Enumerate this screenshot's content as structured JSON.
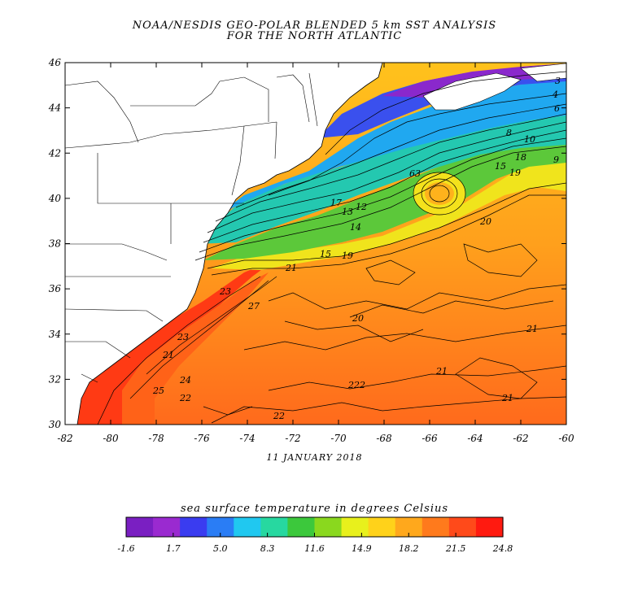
{
  "title_line1": "NOAA/NESDIS GEO-POLAR BLENDED 5 km SST ANALYSIS",
  "title_line2": "FOR THE NORTH ATLANTIC",
  "date": "11 JANUARY 2018",
  "colorbar": {
    "title": "sea surface temperature in degrees Celsius",
    "ticks": [
      "-1.6",
      "1.7",
      "5.0",
      "8.3",
      "11.6",
      "14.9",
      "18.2",
      "21.5",
      "24.8"
    ],
    "colors": [
      "#7a1fc2",
      "#9a2ad0",
      "#3a3cf0",
      "#2a7df5",
      "#20c8f0",
      "#27d8a0",
      "#3cc83c",
      "#8ad81e",
      "#e8f01c",
      "#ffd21a",
      "#ffa81c",
      "#ff7a1c",
      "#ff4a1a",
      "#ff1a10"
    ]
  },
  "axes": {
    "x_ticks": [
      "-82",
      "-80",
      "-78",
      "-76",
      "-74",
      "-72",
      "-70",
      "-68",
      "-66",
      "-64",
      "-62",
      "-60"
    ],
    "y_ticks": [
      "46",
      "44",
      "42",
      "40",
      "38",
      "36",
      "34",
      "32",
      "30"
    ],
    "lon_range": [
      -82,
      -60
    ],
    "lat_range": [
      30,
      46
    ]
  },
  "contour_labels": [
    "3",
    "4",
    "6",
    "8",
    "10",
    "18",
    "15",
    "19",
    "9",
    "63",
    "13",
    "17",
    "12",
    "14",
    "15",
    "19",
    "21",
    "27",
    "20",
    "21",
    "21",
    "23",
    "24",
    "25",
    "22",
    "222",
    "21",
    "22",
    "23",
    "20",
    "21"
  ]
}
